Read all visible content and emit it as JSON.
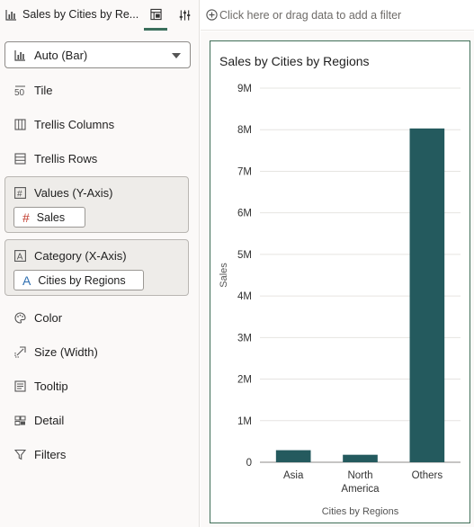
{
  "tabbar": {
    "title": "Sales by Cities by Re...",
    "icons": [
      "bar-chart-icon",
      "grammar-icon",
      "properties-icon"
    ]
  },
  "filterbar": {
    "placeholder": "Click here or drag data to add a filter"
  },
  "chart_type_select": {
    "value": "Auto (Bar)"
  },
  "grammar": {
    "tile": "Tile",
    "trellis_columns": "Trellis Columns",
    "trellis_rows": "Trellis Rows",
    "values_label": "Values (Y-Axis)",
    "values_pill": "Sales",
    "category_label": "Category (X-Axis)",
    "category_pill": "Cities by Regions",
    "color": "Color",
    "size": "Size (Width)",
    "tooltip": "Tooltip",
    "detail": "Detail",
    "filters": "Filters"
  },
  "colors": {
    "bar": "#245a5e",
    "accent": "#3a6f5c",
    "measure_icon": "#c0392b",
    "attribute_icon": "#2f6fb0"
  },
  "chart_data": {
    "type": "bar",
    "title": "Sales by Cities by Regions",
    "xlabel": "Cities by Regions",
    "ylabel": "Sales",
    "categories": [
      "Asia",
      "North America",
      "Others"
    ],
    "category_lines": [
      [
        "Asia"
      ],
      [
        "North",
        "America"
      ],
      [
        "Others"
      ]
    ],
    "values": [
      290000,
      180000,
      8030000
    ],
    "ylim": [
      0,
      9000000
    ],
    "yticks": [
      0,
      1000000,
      2000000,
      3000000,
      4000000,
      5000000,
      6000000,
      7000000,
      8000000,
      9000000
    ],
    "ytick_labels": [
      "0",
      "1M",
      "2M",
      "3M",
      "4M",
      "5M",
      "6M",
      "7M",
      "8M",
      "9M"
    ],
    "grid": true,
    "legend": "none"
  }
}
